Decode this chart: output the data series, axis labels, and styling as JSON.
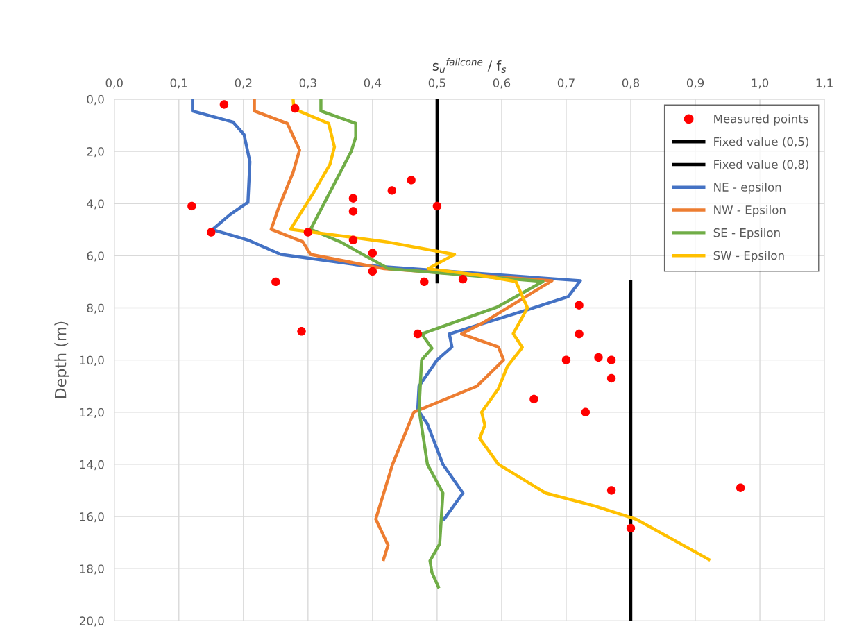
{
  "chart_data": {
    "type": "line",
    "xlabel": "s$_{u}$$^{fallcone}$ / f$_{s}$",
    "ylabel": "Depth (m)",
    "xlim": [
      0,
      1.1
    ],
    "xticks": [
      {
        "value": 0,
        "label": "0,0"
      },
      {
        "value": 0.1,
        "label": "0,1"
      },
      {
        "value": 0.2,
        "label": "0,2"
      },
      {
        "value": 0.3,
        "label": "0,3"
      },
      {
        "value": 0.4,
        "label": "0,4"
      },
      {
        "value": 0.5,
        "label": "0,5"
      },
      {
        "value": 0.6,
        "label": "0,6"
      },
      {
        "value": 0.7,
        "label": "0,7"
      },
      {
        "value": 0.8,
        "label": "0,8"
      },
      {
        "value": 0.9,
        "label": "0,9"
      },
      {
        "value": 1.0,
        "label": "1,0"
      },
      {
        "value": 1.1,
        "label": "1,1"
      }
    ],
    "ylim": [
      20,
      0
    ],
    "yticks": [
      {
        "value": 0,
        "label": "0,0"
      },
      {
        "value": 2,
        "label": "2,0"
      },
      {
        "value": 4,
        "label": "4,0"
      },
      {
        "value": 6,
        "label": "6,0"
      },
      {
        "value": 8,
        "label": "8,0"
      },
      {
        "value": 10,
        "label": "10,0"
      },
      {
        "value": 12,
        "label": "12,0"
      },
      {
        "value": 14,
        "label": "14,0"
      },
      {
        "value": 16,
        "label": "16,0"
      },
      {
        "value": 18,
        "label": "18,0"
      },
      {
        "value": 20,
        "label": "20,0"
      }
    ],
    "grid": true,
    "legend": "top right",
    "series": [
      {
        "name": "Measured points",
        "type": "scatter",
        "marker": "circle",
        "color": "#ff0000",
        "x": [
          0.17,
          0.28,
          0.46,
          0.43,
          0.37,
          0.5,
          0.12,
          0.37,
          0.15,
          0.3,
          0.37,
          0.4,
          0.4,
          0.25,
          0.48,
          0.54,
          0.72,
          0.29,
          0.47,
          0.72,
          0.75,
          0.7,
          0.77,
          0.77,
          0.65,
          0.73,
          0.77,
          0.97,
          0.8
        ],
        "values": [
          0.2,
          0.35,
          3.1,
          3.5,
          3.8,
          4.1,
          4.1,
          4.3,
          5.1,
          5.1,
          5.4,
          5.9,
          6.6,
          7.0,
          7.0,
          6.9,
          7.9,
          8.9,
          9.0,
          9.0,
          9.9,
          10.0,
          10.0,
          10.7,
          11.5,
          12.0,
          15.0,
          14.9,
          16.45
        ]
      },
      {
        "name": "Fixed value (0,5)",
        "color": "#000000",
        "x": [
          0.5,
          0.5
        ],
        "values": [
          0,
          7.0
        ]
      },
      {
        "name": "Fixed value (0,8)",
        "color": "#000000",
        "x": [
          0.8,
          0.8
        ],
        "values": [
          7.0,
          20
        ]
      },
      {
        "name": "NE - epsilon",
        "color": "#4472c4",
        "x": [
          0.121,
          0.121,
          0.184,
          0.201,
          0.21,
          0.207,
          0.179,
          0.152,
          0.208,
          0.258,
          0.376,
          0.722,
          0.703,
          0.643,
          0.519,
          0.523,
          0.5,
          0.472,
          0.47,
          0.485,
          0.509,
          0.54,
          0.511
        ],
        "values": [
          0,
          0.45,
          0.88,
          1.36,
          2.4,
          3.95,
          4.43,
          5.0,
          5.41,
          5.95,
          6.35,
          6.96,
          7.57,
          8.05,
          9.0,
          9.5,
          10.0,
          11.0,
          11.9,
          12.45,
          14.0,
          15.1,
          16.1
        ]
      },
      {
        "name": "NW - Epsilon",
        "color": "#ed7d31",
        "x": [
          0.217,
          0.217,
          0.268,
          0.287,
          0.277,
          0.254,
          0.243,
          0.292,
          0.304,
          0.418,
          0.678,
          0.569,
          0.538,
          0.595,
          0.603,
          0.562,
          0.464,
          0.431,
          0.405,
          0.424,
          0.417
        ],
        "values": [
          0,
          0.45,
          0.93,
          1.95,
          2.8,
          4.2,
          4.99,
          5.47,
          5.95,
          6.5,
          6.96,
          8.6,
          9.0,
          9.5,
          10.0,
          11.0,
          12.0,
          14.0,
          16.1,
          17.1,
          17.65
        ]
      },
      {
        "name": "SE - Epsilon",
        "color": "#70ad47",
        "x": [
          0.32,
          0.32,
          0.374,
          0.374,
          0.367,
          0.304,
          0.35,
          0.425,
          0.664,
          0.593,
          0.476,
          0.492,
          0.476,
          0.472,
          0.485,
          0.509,
          0.504,
          0.489,
          0.492,
          0.502
        ],
        "values": [
          0,
          0.45,
          0.93,
          1.45,
          2.0,
          4.99,
          5.47,
          6.5,
          6.99,
          7.97,
          9.0,
          9.55,
          10.0,
          11.9,
          14.0,
          15.1,
          17.05,
          17.7,
          18.15,
          18.7
        ]
      },
      {
        "name": "SW - Epsilon",
        "color": "#ffc000",
        "x": [
          0.277,
          0.278,
          0.332,
          0.341,
          0.334,
          0.307,
          0.273,
          0.421,
          0.527,
          0.486,
          0.565,
          0.622,
          0.64,
          0.618,
          0.632,
          0.609,
          0.595,
          0.569,
          0.574,
          0.566,
          0.595,
          0.668,
          0.745,
          0.808,
          0.921
        ],
        "values": [
          0,
          0.37,
          0.93,
          1.83,
          2.5,
          3.65,
          4.99,
          5.47,
          5.95,
          6.5,
          6.75,
          6.99,
          8.0,
          8.99,
          9.52,
          10.24,
          11.1,
          12.0,
          12.5,
          13.0,
          14.0,
          15.1,
          15.6,
          16.1,
          17.65
        ]
      }
    ]
  }
}
